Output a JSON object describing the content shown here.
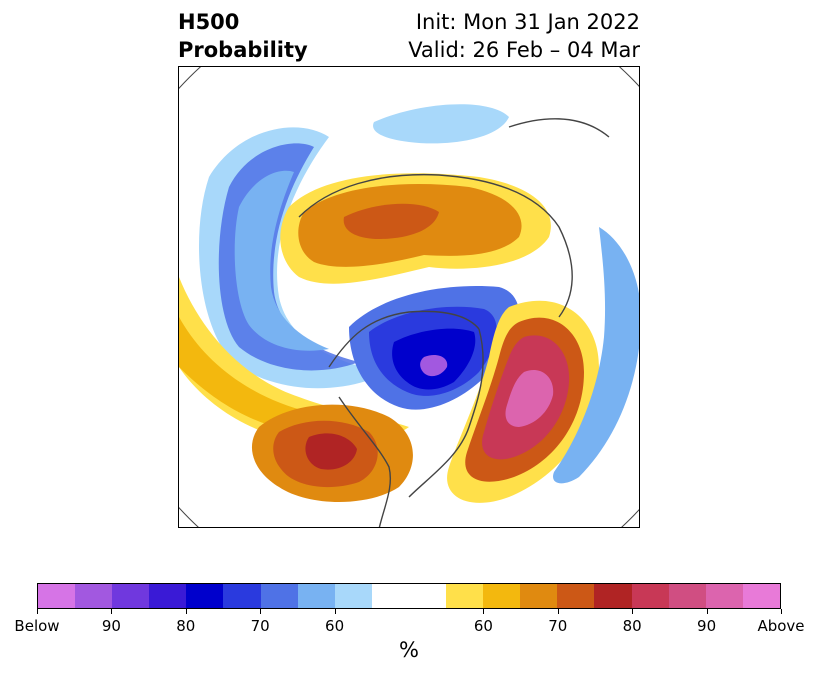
{
  "header": {
    "title_line1": "H500",
    "title_line2": "Probability",
    "init_text": "Init: Mon 31 Jan 2022",
    "valid_text": "Valid: 26 Feb – 04 Mar"
  },
  "map": {
    "projection": "north-polar-stereographic",
    "features": [
      {
        "name": "below-normal-arctic-russia",
        "category": "below",
        "level": "50-60"
      },
      {
        "name": "below-normal-north-pacific-band",
        "category": "below",
        "level": "50-65"
      },
      {
        "name": "below-normal-canada-core",
        "category": "below",
        "level": "90+"
      },
      {
        "name": "below-normal-north-atlantic-strip",
        "category": "below",
        "level": "50-70"
      },
      {
        "name": "above-normal-siberia",
        "category": "above",
        "level": "60-75"
      },
      {
        "name": "above-normal-pacific-band",
        "category": "above",
        "level": "50-60"
      },
      {
        "name": "above-normal-southwest-us",
        "category": "above",
        "level": "60-80"
      },
      {
        "name": "above-normal-atlantic",
        "category": "above",
        "level": "60-95"
      }
    ]
  },
  "colorbar": {
    "colors": [
      "#d674e6",
      "#a258e0",
      "#7038de",
      "#3a1ad6",
      "#0000cc",
      "#2a3ade",
      "#4f72e6",
      "#78b2f2",
      "#a8d8fa",
      "#ffffff",
      "#ffffff",
      "#ffe04a",
      "#f3b80e",
      "#e08a10",
      "#cc5816",
      "#b02424",
      "#c83856",
      "#d04e82",
      "#dc64ae",
      "#e87ad8"
    ],
    "tick_labels": [
      "Below",
      "90",
      "80",
      "70",
      "60",
      "60",
      "70",
      "80",
      "90",
      "Above"
    ],
    "tick_indices": [
      0,
      2,
      4,
      6,
      8,
      12,
      14,
      16,
      18,
      20
    ],
    "unit_label": "%"
  }
}
